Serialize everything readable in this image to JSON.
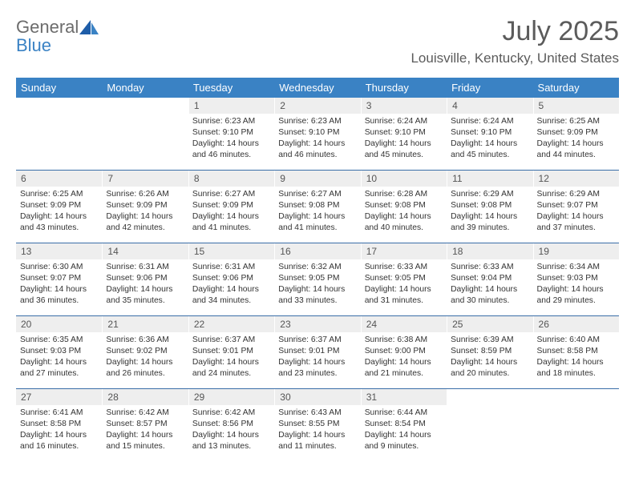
{
  "logo": {
    "word1": "General",
    "word2": "Blue"
  },
  "title": "July 2025",
  "subtitle": "Louisville, Kentucky, United States",
  "style": {
    "header_bg": "#3a82c4",
    "header_fg": "#ffffff",
    "rule_color": "#3a6ea8",
    "daynum_bg": "#eeeeee",
    "logo_gray": "#6c6c6c",
    "logo_blue": "#3a82c4",
    "page_bg": "#ffffff",
    "text_color": "#333333",
    "title_fontsize": 34,
    "subtitle_fontsize": 17,
    "th_fontsize": 13,
    "daynum_fontsize": 12,
    "daytext_fontsize": 10.3
  },
  "weekdays": [
    "Sunday",
    "Monday",
    "Tuesday",
    "Wednesday",
    "Thursday",
    "Friday",
    "Saturday"
  ],
  "weeks": [
    [
      {
        "day": "",
        "lines": []
      },
      {
        "day": "",
        "lines": []
      },
      {
        "day": "1",
        "lines": [
          "Sunrise: 6:23 AM",
          "Sunset: 9:10 PM",
          "Daylight: 14 hours and 46 minutes."
        ]
      },
      {
        "day": "2",
        "lines": [
          "Sunrise: 6:23 AM",
          "Sunset: 9:10 PM",
          "Daylight: 14 hours and 46 minutes."
        ]
      },
      {
        "day": "3",
        "lines": [
          "Sunrise: 6:24 AM",
          "Sunset: 9:10 PM",
          "Daylight: 14 hours and 45 minutes."
        ]
      },
      {
        "day": "4",
        "lines": [
          "Sunrise: 6:24 AM",
          "Sunset: 9:10 PM",
          "Daylight: 14 hours and 45 minutes."
        ]
      },
      {
        "day": "5",
        "lines": [
          "Sunrise: 6:25 AM",
          "Sunset: 9:09 PM",
          "Daylight: 14 hours and 44 minutes."
        ]
      }
    ],
    [
      {
        "day": "6",
        "lines": [
          "Sunrise: 6:25 AM",
          "Sunset: 9:09 PM",
          "Daylight: 14 hours and 43 minutes."
        ]
      },
      {
        "day": "7",
        "lines": [
          "Sunrise: 6:26 AM",
          "Sunset: 9:09 PM",
          "Daylight: 14 hours and 42 minutes."
        ]
      },
      {
        "day": "8",
        "lines": [
          "Sunrise: 6:27 AM",
          "Sunset: 9:09 PM",
          "Daylight: 14 hours and 41 minutes."
        ]
      },
      {
        "day": "9",
        "lines": [
          "Sunrise: 6:27 AM",
          "Sunset: 9:08 PM",
          "Daylight: 14 hours and 41 minutes."
        ]
      },
      {
        "day": "10",
        "lines": [
          "Sunrise: 6:28 AM",
          "Sunset: 9:08 PM",
          "Daylight: 14 hours and 40 minutes."
        ]
      },
      {
        "day": "11",
        "lines": [
          "Sunrise: 6:29 AM",
          "Sunset: 9:08 PM",
          "Daylight: 14 hours and 39 minutes."
        ]
      },
      {
        "day": "12",
        "lines": [
          "Sunrise: 6:29 AM",
          "Sunset: 9:07 PM",
          "Daylight: 14 hours and 37 minutes."
        ]
      }
    ],
    [
      {
        "day": "13",
        "lines": [
          "Sunrise: 6:30 AM",
          "Sunset: 9:07 PM",
          "Daylight: 14 hours and 36 minutes."
        ]
      },
      {
        "day": "14",
        "lines": [
          "Sunrise: 6:31 AM",
          "Sunset: 9:06 PM",
          "Daylight: 14 hours and 35 minutes."
        ]
      },
      {
        "day": "15",
        "lines": [
          "Sunrise: 6:31 AM",
          "Sunset: 9:06 PM",
          "Daylight: 14 hours and 34 minutes."
        ]
      },
      {
        "day": "16",
        "lines": [
          "Sunrise: 6:32 AM",
          "Sunset: 9:05 PM",
          "Daylight: 14 hours and 33 minutes."
        ]
      },
      {
        "day": "17",
        "lines": [
          "Sunrise: 6:33 AM",
          "Sunset: 9:05 PM",
          "Daylight: 14 hours and 31 minutes."
        ]
      },
      {
        "day": "18",
        "lines": [
          "Sunrise: 6:33 AM",
          "Sunset: 9:04 PM",
          "Daylight: 14 hours and 30 minutes."
        ]
      },
      {
        "day": "19",
        "lines": [
          "Sunrise: 6:34 AM",
          "Sunset: 9:03 PM",
          "Daylight: 14 hours and 29 minutes."
        ]
      }
    ],
    [
      {
        "day": "20",
        "lines": [
          "Sunrise: 6:35 AM",
          "Sunset: 9:03 PM",
          "Daylight: 14 hours and 27 minutes."
        ]
      },
      {
        "day": "21",
        "lines": [
          "Sunrise: 6:36 AM",
          "Sunset: 9:02 PM",
          "Daylight: 14 hours and 26 minutes."
        ]
      },
      {
        "day": "22",
        "lines": [
          "Sunrise: 6:37 AM",
          "Sunset: 9:01 PM",
          "Daylight: 14 hours and 24 minutes."
        ]
      },
      {
        "day": "23",
        "lines": [
          "Sunrise: 6:37 AM",
          "Sunset: 9:01 PM",
          "Daylight: 14 hours and 23 minutes."
        ]
      },
      {
        "day": "24",
        "lines": [
          "Sunrise: 6:38 AM",
          "Sunset: 9:00 PM",
          "Daylight: 14 hours and 21 minutes."
        ]
      },
      {
        "day": "25",
        "lines": [
          "Sunrise: 6:39 AM",
          "Sunset: 8:59 PM",
          "Daylight: 14 hours and 20 minutes."
        ]
      },
      {
        "day": "26",
        "lines": [
          "Sunrise: 6:40 AM",
          "Sunset: 8:58 PM",
          "Daylight: 14 hours and 18 minutes."
        ]
      }
    ],
    [
      {
        "day": "27",
        "lines": [
          "Sunrise: 6:41 AM",
          "Sunset: 8:58 PM",
          "Daylight: 14 hours and 16 minutes."
        ]
      },
      {
        "day": "28",
        "lines": [
          "Sunrise: 6:42 AM",
          "Sunset: 8:57 PM",
          "Daylight: 14 hours and 15 minutes."
        ]
      },
      {
        "day": "29",
        "lines": [
          "Sunrise: 6:42 AM",
          "Sunset: 8:56 PM",
          "Daylight: 14 hours and 13 minutes."
        ]
      },
      {
        "day": "30",
        "lines": [
          "Sunrise: 6:43 AM",
          "Sunset: 8:55 PM",
          "Daylight: 14 hours and 11 minutes."
        ]
      },
      {
        "day": "31",
        "lines": [
          "Sunrise: 6:44 AM",
          "Sunset: 8:54 PM",
          "Daylight: 14 hours and 9 minutes."
        ]
      },
      {
        "day": "",
        "lines": []
      },
      {
        "day": "",
        "lines": []
      }
    ]
  ]
}
